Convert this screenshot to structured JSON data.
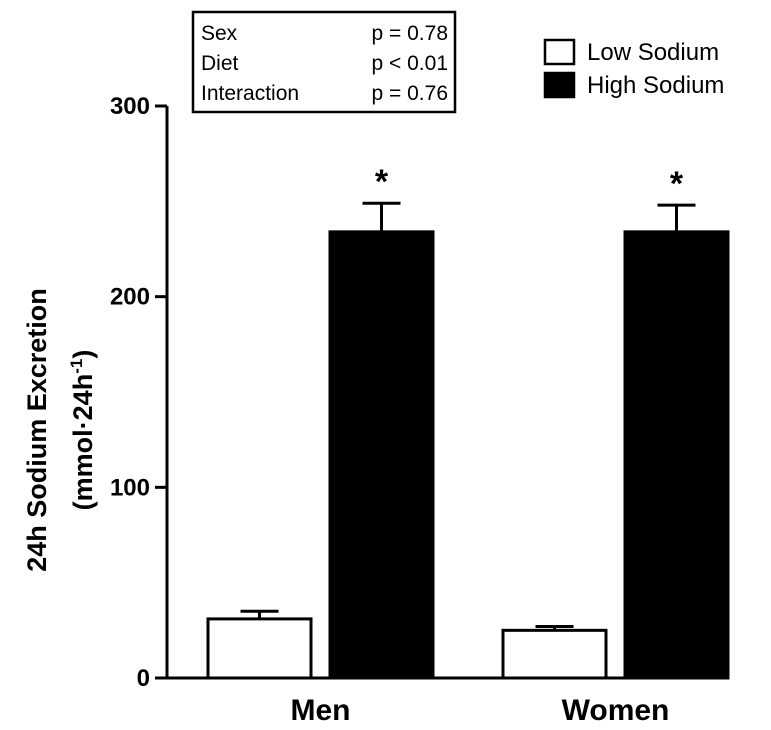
{
  "chart_data": {
    "type": "bar",
    "categories": [
      "Men",
      "Women"
    ],
    "series": [
      {
        "name": "Low Sodium",
        "values": [
          31,
          25
        ],
        "errors": [
          4,
          2
        ],
        "color": "#ffffff"
      },
      {
        "name": "High Sodium",
        "values": [
          234,
          234
        ],
        "errors": [
          15,
          14
        ],
        "color": "#000000"
      }
    ],
    "ylabel_line1": "24h Sodium Excretion",
    "ylabel_line2": "(mmol·24h",
    "ylabel_sup": "-1",
    "ylabel_close": ")",
    "ylim": [
      0,
      300
    ],
    "yticks": [
      "0",
      "100",
      "200",
      "300"
    ],
    "significance_marks": [
      "*",
      "*"
    ],
    "legend_position": "top-right",
    "stats_box": [
      {
        "label": "Sex",
        "value": "p = 0.78"
      },
      {
        "label": "Diet",
        "value": "p < 0.01"
      },
      {
        "label": "Interaction",
        "value": "p = 0.76"
      }
    ]
  }
}
